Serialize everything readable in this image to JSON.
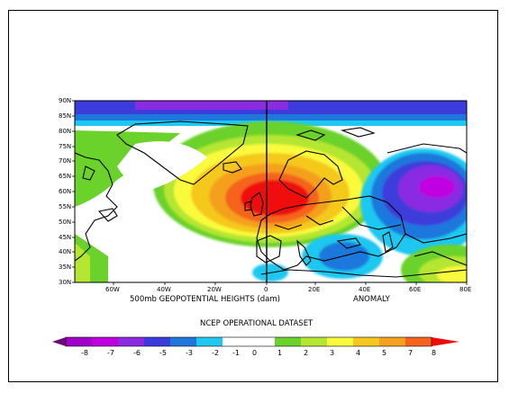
{
  "map": {
    "title_left": "500mb GEOPOTENTIAL HEIGHTS (dam)",
    "title_right": "ANOMALY",
    "source": "NCEP OPERATIONAL DATASET",
    "lat_labels": [
      "90N",
      "85N",
      "80N",
      "75N",
      "70N",
      "65N",
      "60N",
      "55N",
      "50N",
      "45N",
      "40N",
      "35N",
      "30N"
    ],
    "lon_labels": [
      "60W",
      "40W",
      "20W",
      "0",
      "20E",
      "40E",
      "60E",
      "80E"
    ],
    "legend": {
      "labels": [
        "-8",
        "-7",
        "-6",
        "-5",
        "-3",
        "-2",
        "-1",
        "0",
        "1",
        "2",
        "3",
        "4",
        "5",
        "7",
        "8"
      ],
      "colors": [
        "#6a0a78",
        "#a000c8",
        "#c000e0",
        "#8a2be2",
        "#3c3cdc",
        "#1e78dc",
        "#1ec8f0",
        "#ffffff",
        "#6ad22a",
        "#b4e632",
        "#fafa3c",
        "#f5c81e",
        "#f5a01e",
        "#f5641e",
        "#f00a0a"
      ]
    }
  }
}
